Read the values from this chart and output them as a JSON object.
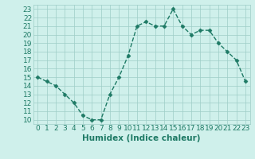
{
  "x": [
    0,
    1,
    2,
    3,
    4,
    5,
    6,
    7,
    8,
    9,
    10,
    11,
    12,
    13,
    14,
    15,
    16,
    17,
    18,
    19,
    20,
    21,
    22,
    23
  ],
  "y": [
    15,
    14.5,
    14,
    13,
    12,
    10.5,
    10,
    10,
    13,
    15,
    17.5,
    21,
    21.5,
    21,
    21,
    23,
    21,
    20,
    20.5,
    20.5,
    19,
    18,
    17,
    14.5
  ],
  "line_color": "#1e7a65",
  "marker": "D",
  "marker_size": 2.5,
  "bg_color": "#cff0eb",
  "grid_color": "#9ecdc7",
  "xlabel": "Humidex (Indice chaleur)",
  "ylabel_ticks": [
    10,
    11,
    12,
    13,
    14,
    15,
    16,
    17,
    18,
    19,
    20,
    21,
    22,
    23
  ],
  "xlim": [
    -0.5,
    23.5
  ],
  "ylim": [
    9.5,
    23.5
  ],
  "tick_color": "#1e7a65",
  "tick_label_fontsize": 6.5,
  "xlabel_fontsize": 7.5
}
